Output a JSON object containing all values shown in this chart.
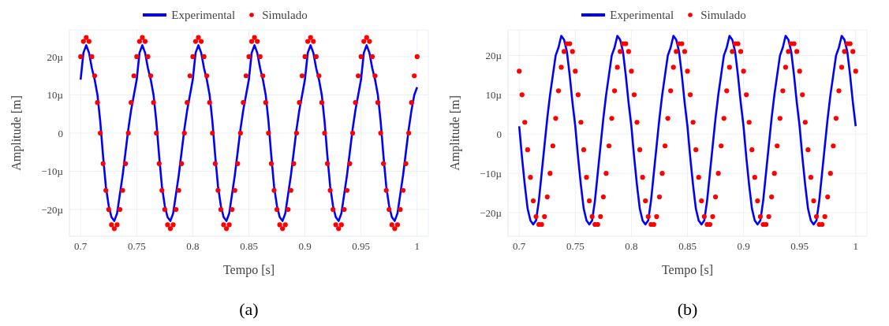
{
  "chart_data": [
    {
      "type": "line",
      "xlabel": "Tempo [s]",
      "ylabel": "Amplitude [m]",
      "annotations": [
        "(a)"
      ],
      "grid": true,
      "legend": "top",
      "line_style": "solid",
      "xlim": [
        0.69,
        1.01
      ],
      "xticks": [
        0.7,
        0.75,
        0.8,
        0.85,
        0.9,
        0.95,
        1
      ],
      "ylim": [
        -27,
        27
      ],
      "yticks": [
        {
          "value": 20,
          "label": "20µ"
        },
        {
          "value": 10,
          "label": "10µ"
        },
        0,
        {
          "value": -10,
          "label": "−10µ"
        },
        {
          "value": -20,
          "label": "−20µ"
        }
      ],
      "x": [
        0.7,
        0.7025,
        0.705,
        0.7075,
        0.71,
        0.7125,
        0.715,
        0.7175,
        0.72,
        0.7225,
        0.725,
        0.7275,
        0.73,
        0.7325,
        0.735,
        0.7375,
        0.74,
        0.7425,
        0.745,
        0.7475,
        0.75,
        0.7525,
        0.755,
        0.7575,
        0.76,
        0.7625,
        0.765,
        0.7675,
        0.77,
        0.7725,
        0.775,
        0.7775,
        0.78,
        0.7825,
        0.785,
        0.7875,
        0.79,
        0.7925,
        0.795,
        0.7975,
        0.8,
        0.8025,
        0.805,
        0.8075,
        0.81,
        0.8125,
        0.815,
        0.8175,
        0.82,
        0.8225,
        0.825,
        0.8275,
        0.83,
        0.8325,
        0.835,
        0.8375,
        0.84,
        0.8425,
        0.845,
        0.8475,
        0.85,
        0.8525,
        0.855,
        0.8575,
        0.86,
        0.8625,
        0.865,
        0.8675,
        0.87,
        0.8725,
        0.875,
        0.8775,
        0.88,
        0.8825,
        0.885,
        0.8875,
        0.89,
        0.8925,
        0.895,
        0.8975,
        0.9,
        0.9025,
        0.905,
        0.9075,
        0.91,
        0.9125,
        0.915,
        0.9175,
        0.92,
        0.9225,
        0.925,
        0.9275,
        0.93,
        0.9325,
        0.935,
        0.9375,
        0.94,
        0.9425,
        0.945,
        0.9475,
        0.95,
        0.9525,
        0.955,
        0.9575,
        0.96,
        0.9625,
        0.965,
        0.9675,
        0.97,
        0.9725,
        0.975,
        0.9775,
        0.98,
        0.9825,
        0.985,
        0.9875,
        0.99,
        0.9925,
        0.995,
        0.9975,
        1
      ],
      "series": [
        {
          "name": "Experimental",
          "color": "#0000ff",
          "marker": "none",
          "values": [
            14,
            21,
            23,
            21,
            17,
            14,
            10,
            3,
            -6,
            -14,
            -19,
            -22,
            -23,
            -21,
            -16,
            -11,
            -5,
            1,
            6,
            10,
            14,
            21,
            23,
            21,
            17,
            14,
            10,
            3,
            -6,
            -14,
            -19,
            -22,
            -23,
            -21,
            -16,
            -11,
            -5,
            1,
            6,
            10,
            14,
            21,
            23,
            21,
            17,
            14,
            10,
            3,
            -6,
            -14,
            -19,
            -22,
            -23,
            -21,
            -16,
            -11,
            -5,
            1,
            6,
            10,
            14,
            21,
            23,
            21,
            17,
            14,
            10,
            3,
            -6,
            -14,
            -19,
            -22,
            -23,
            -21,
            -16,
            -11,
            -5,
            1,
            6,
            10,
            14,
            21,
            23,
            21,
            17,
            14,
            10,
            3,
            -6,
            -14,
            -19,
            -22,
            -23,
            -21,
            -16,
            -11,
            -5,
            1,
            6,
            10,
            14,
            21,
            23,
            21,
            17,
            14,
            10,
            3,
            -6,
            -14,
            -19,
            -22,
            -23,
            -21,
            -16,
            -11,
            -5,
            1,
            6,
            10,
            12
          ]
        },
        {
          "name": "Simulado",
          "type": "scatter",
          "color": "#ff0000",
          "marker": "circle",
          "values": [
            20,
            24,
            25,
            24,
            20,
            15,
            8,
            0,
            -8,
            -15,
            -20,
            -24,
            -25,
            -24,
            -20,
            -15,
            -8,
            0,
            8,
            15,
            20,
            24,
            25,
            24,
            20,
            15,
            8,
            0,
            -8,
            -15,
            -20,
            -24,
            -25,
            -24,
            -20,
            -15,
            -8,
            0,
            8,
            15,
            20,
            24,
            25,
            24,
            20,
            15,
            8,
            0,
            -8,
            -15,
            -20,
            -24,
            -25,
            -24,
            -20,
            -15,
            -8,
            0,
            8,
            15,
            20,
            24,
            25,
            24,
            20,
            15,
            8,
            0,
            -8,
            -15,
            -20,
            -24,
            -25,
            -24,
            -20,
            -15,
            -8,
            0,
            8,
            15,
            20,
            24,
            25,
            24,
            20,
            15,
            8,
            0,
            -8,
            -15,
            -20,
            -24,
            -25,
            -24,
            -20,
            -15,
            -8,
            0,
            8,
            15,
            20,
            24,
            25,
            24,
            20,
            15,
            8,
            0,
            -8,
            -15,
            -20,
            -24,
            -25,
            -24,
            -20,
            -15,
            -8,
            0,
            8,
            15,
            20
          ]
        }
      ]
    },
    {
      "type": "line",
      "xlabel": "Tempo [s]",
      "ylabel": "Amplitude [m]",
      "annotations": [
        "(b)"
      ],
      "grid": true,
      "legend": "top",
      "line_style": "solid",
      "xlim": [
        0.69,
        1.01
      ],
      "xticks": [
        0.7,
        0.75,
        0.8,
        0.85,
        0.9,
        0.95,
        1
      ],
      "ylim": [
        -26,
        26.5
      ],
      "yticks": [
        {
          "value": 20,
          "label": "20µ"
        },
        {
          "value": 10,
          "label": "10µ"
        },
        0,
        {
          "value": -10,
          "label": "−10µ"
        },
        {
          "value": -20,
          "label": "−20µ"
        }
      ],
      "x": [
        0.7,
        0.7025,
        0.705,
        0.7075,
        0.71,
        0.7125,
        0.715,
        0.7175,
        0.72,
        0.7225,
        0.725,
        0.7275,
        0.73,
        0.7325,
        0.735,
        0.7375,
        0.74,
        0.7425,
        0.745,
        0.7475,
        0.75,
        0.7525,
        0.755,
        0.7575,
        0.76,
        0.7625,
        0.765,
        0.7675,
        0.77,
        0.7725,
        0.775,
        0.7775,
        0.78,
        0.7825,
        0.785,
        0.7875,
        0.79,
        0.7925,
        0.795,
        0.7975,
        0.8,
        0.8025,
        0.805,
        0.8075,
        0.81,
        0.8125,
        0.815,
        0.8175,
        0.82,
        0.8225,
        0.825,
        0.8275,
        0.83,
        0.8325,
        0.835,
        0.8375,
        0.84,
        0.8425,
        0.845,
        0.8475,
        0.85,
        0.8525,
        0.855,
        0.8575,
        0.86,
        0.8625,
        0.865,
        0.8675,
        0.87,
        0.8725,
        0.875,
        0.8775,
        0.88,
        0.8825,
        0.885,
        0.8875,
        0.89,
        0.8925,
        0.895,
        0.8975,
        0.9,
        0.9025,
        0.905,
        0.9075,
        0.91,
        0.9125,
        0.915,
        0.9175,
        0.92,
        0.9225,
        0.925,
        0.9275,
        0.93,
        0.9325,
        0.935,
        0.9375,
        0.94,
        0.9425,
        0.945,
        0.9475,
        0.95,
        0.9525,
        0.955,
        0.9575,
        0.96,
        0.9625,
        0.965,
        0.9675,
        0.97,
        0.9725,
        0.975,
        0.9775,
        0.98,
        0.9825,
        0.985,
        0.9875,
        0.99,
        0.9925,
        0.995,
        0.9975,
        1
      ],
      "series": [
        {
          "name": "Experimental",
          "color": "#0000ff",
          "marker": "none",
          "values": [
            2,
            -6,
            -13,
            -19,
            -22,
            -23,
            -22,
            -17,
            -10,
            -3,
            4,
            10,
            15,
            20,
            22,
            25,
            24,
            21,
            15,
            8,
            2,
            -6,
            -13,
            -19,
            -22,
            -23,
            -22,
            -17,
            -10,
            -3,
            4,
            10,
            15,
            20,
            22,
            25,
            24,
            21,
            15,
            8,
            2,
            -6,
            -13,
            -19,
            -22,
            -23,
            -22,
            -17,
            -10,
            -3,
            4,
            10,
            15,
            20,
            22,
            25,
            24,
            21,
            15,
            8,
            2,
            -6,
            -13,
            -19,
            -22,
            -23,
            -22,
            -17,
            -10,
            -3,
            4,
            10,
            15,
            20,
            22,
            25,
            24,
            21,
            15,
            8,
            2,
            -6,
            -13,
            -19,
            -22,
            -23,
            -22,
            -17,
            -10,
            -3,
            4,
            10,
            15,
            20,
            22,
            25,
            24,
            21,
            15,
            8,
            2,
            -6,
            -13,
            -19,
            -22,
            -23,
            -22,
            -17,
            -10,
            -3,
            4,
            10,
            15,
            20,
            22,
            25,
            24,
            21,
            15,
            8,
            2
          ]
        },
        {
          "name": "Simulado",
          "type": "scatter",
          "color": "#ff0000",
          "marker": "circle",
          "values": [
            16,
            10,
            3,
            -4,
            -11,
            -17,
            -21,
            -23,
            -23,
            -21,
            -16,
            -10,
            -3,
            4,
            11,
            17,
            21,
            23,
            23,
            21,
            16,
            10,
            3,
            -4,
            -11,
            -17,
            -21,
            -23,
            -23,
            -21,
            -16,
            -10,
            -3,
            4,
            11,
            17,
            21,
            23,
            23,
            21,
            16,
            10,
            3,
            -4,
            -11,
            -17,
            -21,
            -23,
            -23,
            -21,
            -16,
            -10,
            -3,
            4,
            11,
            17,
            21,
            23,
            23,
            21,
            16,
            10,
            3,
            -4,
            -11,
            -17,
            -21,
            -23,
            -23,
            -21,
            -16,
            -10,
            -3,
            4,
            11,
            17,
            21,
            23,
            23,
            21,
            16,
            10,
            3,
            -4,
            -11,
            -17,
            -21,
            -23,
            -23,
            -21,
            -16,
            -10,
            -3,
            4,
            11,
            17,
            21,
            23,
            23,
            21,
            16,
            10,
            3,
            -4,
            -11,
            -17,
            -21,
            -23,
            -23,
            -21,
            -16,
            -10,
            -3,
            4,
            11,
            17,
            21,
            23,
            23,
            21,
            16
          ]
        }
      ]
    }
  ]
}
